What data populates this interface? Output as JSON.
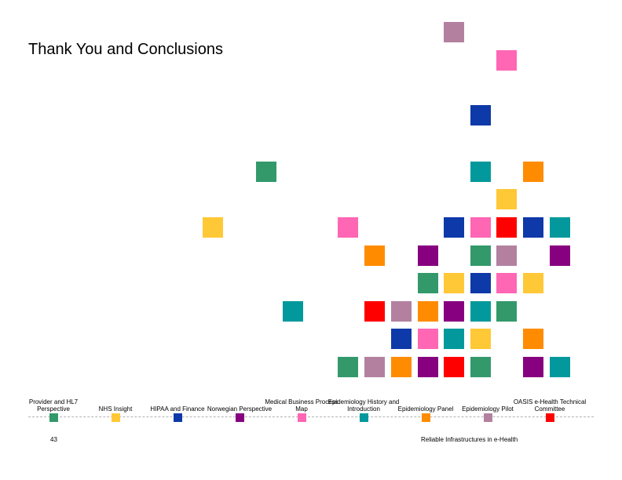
{
  "title": "Thank You and Conclusions",
  "colors": {
    "green": "#33996b",
    "yellow": "#ffc836",
    "blue": "#0e39a8",
    "purple": "#87007f",
    "pink": "#ff66b4",
    "teal": "#03999c",
    "orange": "#ff8c00",
    "mauve": "#b3819f",
    "red": "#ff0000"
  },
  "timeline": [
    {
      "label": "Provider and HL7 Perspective",
      "color": "green"
    },
    {
      "label": "NHS Insight",
      "color": "yellow"
    },
    {
      "label": "HIPAA and Finance",
      "color": "blue"
    },
    {
      "label": "Norwegian Perspective",
      "color": "purple"
    },
    {
      "label": "Medical Business Process Map",
      "color": "pink"
    },
    {
      "label": "Epidemiology History and Introduction",
      "color": "teal"
    },
    {
      "label": "Epidemiology Panel",
      "color": "orange"
    },
    {
      "label": "Epidemiology Pilot",
      "color": "mauve"
    },
    {
      "label": "OASIS e-Health Technical Committee",
      "color": "red"
    }
  ],
  "squares": [
    {
      "color": "mauve"
    },
    {
      "color": "pink"
    },
    {
      "color": "blue"
    },
    {
      "color": "green"
    },
    {
      "color": "teal"
    },
    {
      "color": "orange"
    },
    {
      "color": "yellow"
    },
    {
      "color": "yellow"
    },
    {
      "color": "pink"
    },
    {
      "color": "blue"
    },
    {
      "color": "pink"
    },
    {
      "color": "red"
    },
    {
      "color": "blue"
    },
    {
      "color": "teal"
    },
    {
      "color": "orange"
    },
    {
      "color": "purple"
    },
    {
      "color": "green"
    },
    {
      "color": "mauve"
    },
    {
      "color": "purple"
    },
    {
      "color": "green"
    },
    {
      "color": "yellow"
    },
    {
      "color": "blue"
    },
    {
      "color": "pink"
    },
    {
      "color": "yellow"
    },
    {
      "color": "teal"
    },
    {
      "color": "red"
    },
    {
      "color": "mauve"
    },
    {
      "color": "orange"
    },
    {
      "color": "purple"
    },
    {
      "color": "teal"
    },
    {
      "color": "green"
    },
    {
      "color": "blue"
    },
    {
      "color": "pink"
    },
    {
      "color": "teal"
    },
    {
      "color": "yellow"
    },
    {
      "color": "orange"
    },
    {
      "color": "green"
    },
    {
      "color": "mauve"
    },
    {
      "color": "orange"
    },
    {
      "color": "purple"
    },
    {
      "color": "red"
    },
    {
      "color": "green"
    },
    {
      "color": "purple"
    },
    {
      "color": "teal"
    }
  ],
  "page_number": "43",
  "footer": "Reliable Infrastructures in e-Health"
}
